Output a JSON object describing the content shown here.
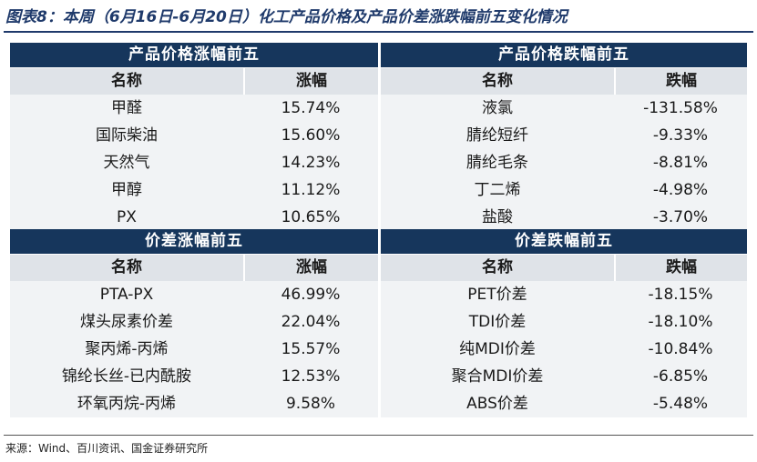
{
  "title": "图表8：本周（6月16日-6月20日）化工产品价格及产品价差涨跌幅前五变化情况",
  "source": "来源：Wind、百川资讯、国金证券研究所",
  "tables": [
    {
      "title": "产品价格涨幅前五",
      "headers": [
        "名称",
        "涨幅"
      ],
      "rows": [
        [
          "甲醛",
          "15.74%"
        ],
        [
          "国际柴油",
          "15.60%"
        ],
        [
          "天然气",
          "14.23%"
        ],
        [
          "甲醇",
          "11.12%"
        ],
        [
          "PX",
          "10.65%"
        ]
      ]
    },
    {
      "title": "产品价格跌幅前五",
      "headers": [
        "名称",
        "跌幅"
      ],
      "rows": [
        [
          "液氯",
          "-131.58%"
        ],
        [
          "腈纶短纤",
          "-9.33%"
        ],
        [
          "腈纶毛条",
          "-8.81%"
        ],
        [
          "丁二烯",
          "-4.98%"
        ],
        [
          "盐酸",
          "-3.70%"
        ]
      ]
    },
    {
      "title": "价差涨幅前五",
      "headers": [
        "名称",
        "涨幅"
      ],
      "rows": [
        [
          "PTA-PX",
          "46.99%"
        ],
        [
          "煤头尿素价差",
          "22.04%"
        ],
        [
          "聚丙烯-丙烯",
          "15.57%"
        ],
        [
          "锦纶长丝-已内酰胺",
          "12.53%"
        ],
        [
          "环氧丙烷-丙烯",
          "9.58%"
        ]
      ]
    },
    {
      "title": "价差跌幅前五",
      "headers": [
        "名称",
        "跌幅"
      ],
      "rows": [
        [
          "PET价差",
          "-18.15%"
        ],
        [
          "TDI价差",
          "-18.10%"
        ],
        [
          "纯MDI价差",
          "-10.84%"
        ],
        [
          "聚合MDI价差",
          "-6.85%"
        ],
        [
          "ABS价差",
          "-5.48%"
        ]
      ]
    }
  ]
}
